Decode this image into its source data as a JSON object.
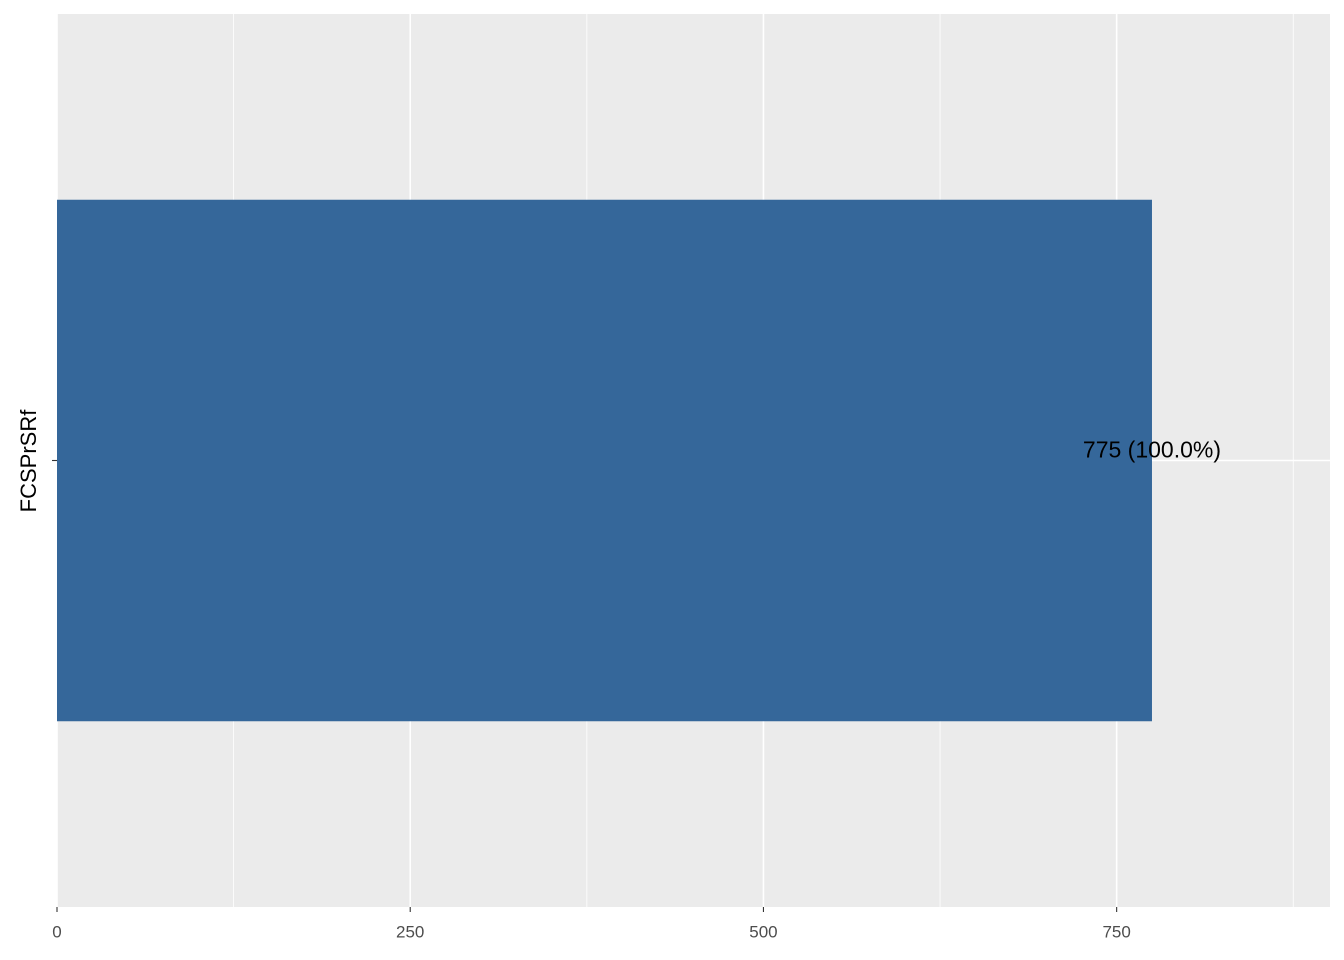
{
  "chart_data": {
    "type": "bar",
    "orientation": "horizontal",
    "y_label": "FCSPrSRf",
    "categories": [
      null
    ],
    "values": [
      775
    ],
    "value_labels": [
      "775 (100.0%)"
    ],
    "color": "#35679a",
    "xlim": [
      0,
      901
    ],
    "xticks": [
      0,
      250,
      500,
      750
    ],
    "xminor": [
      125,
      375,
      625,
      875
    ],
    "grid": true
  }
}
